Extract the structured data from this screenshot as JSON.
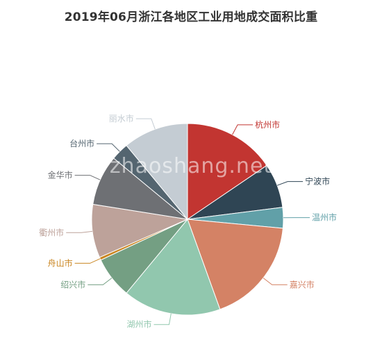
{
  "chart_data": {
    "type": "pie",
    "title": "2019年06月浙江各地区工业用地成交面积比重",
    "watermark": "zhaoshang.net",
    "slices": [
      {
        "name": "杭州市",
        "value": 15.5,
        "color": "#c23531"
      },
      {
        "name": "宁波市",
        "value": 7.5,
        "color": "#2f4554"
      },
      {
        "name": "温州市",
        "value": 3.5,
        "color": "#61a0a8"
      },
      {
        "name": "嘉兴市",
        "value": 18.0,
        "color": "#d48265"
      },
      {
        "name": "湖州市",
        "value": 16.5,
        "color": "#91c7ae"
      },
      {
        "name": "绍兴市",
        "value": 7.0,
        "color": "#749f83"
      },
      {
        "name": "舟山市",
        "value": 0.5,
        "color": "#ca8622"
      },
      {
        "name": "衢州市",
        "value": 9.0,
        "color": "#bda29a"
      },
      {
        "name": "金华市",
        "value": 8.5,
        "color": "#6e7074"
      },
      {
        "name": "台州市",
        "value": 3.0,
        "color": "#546570"
      },
      {
        "name": "丽水市",
        "value": 11.0,
        "color": "#c4ccd3"
      }
    ]
  }
}
